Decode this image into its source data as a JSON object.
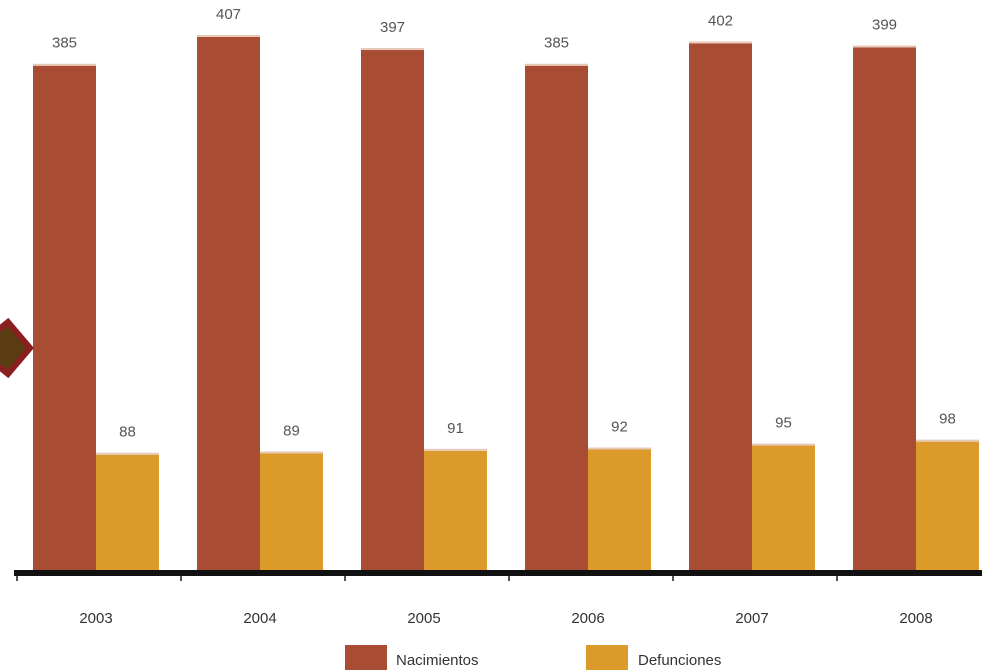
{
  "chart_data": {
    "type": "bar",
    "title": "",
    "xlabel": "",
    "ylabel": "",
    "categories": [
      "2003",
      "2004",
      "2005",
      "2006",
      "2007",
      "2008"
    ],
    "series": [
      {
        "name": "Nacimientos",
        "color": "#a84c33",
        "values": [
          385,
          407,
          397,
          385,
          402,
          399
        ],
        "labels": [
          "385",
          "407",
          "397",
          "385",
          "402",
          "399"
        ]
      },
      {
        "name": "Defunciones",
        "color": "#dc9a2a",
        "values": [
          88,
          89,
          91,
          92,
          95,
          98
        ],
        "labels": [
          "88",
          "89",
          "91",
          "92",
          "95",
          "98"
        ]
      }
    ],
    "ylim": [
      0,
      410
    ],
    "grid": false,
    "legend_position": "bottom-center",
    "decoration_icon": "diamond-arrow-icon"
  }
}
